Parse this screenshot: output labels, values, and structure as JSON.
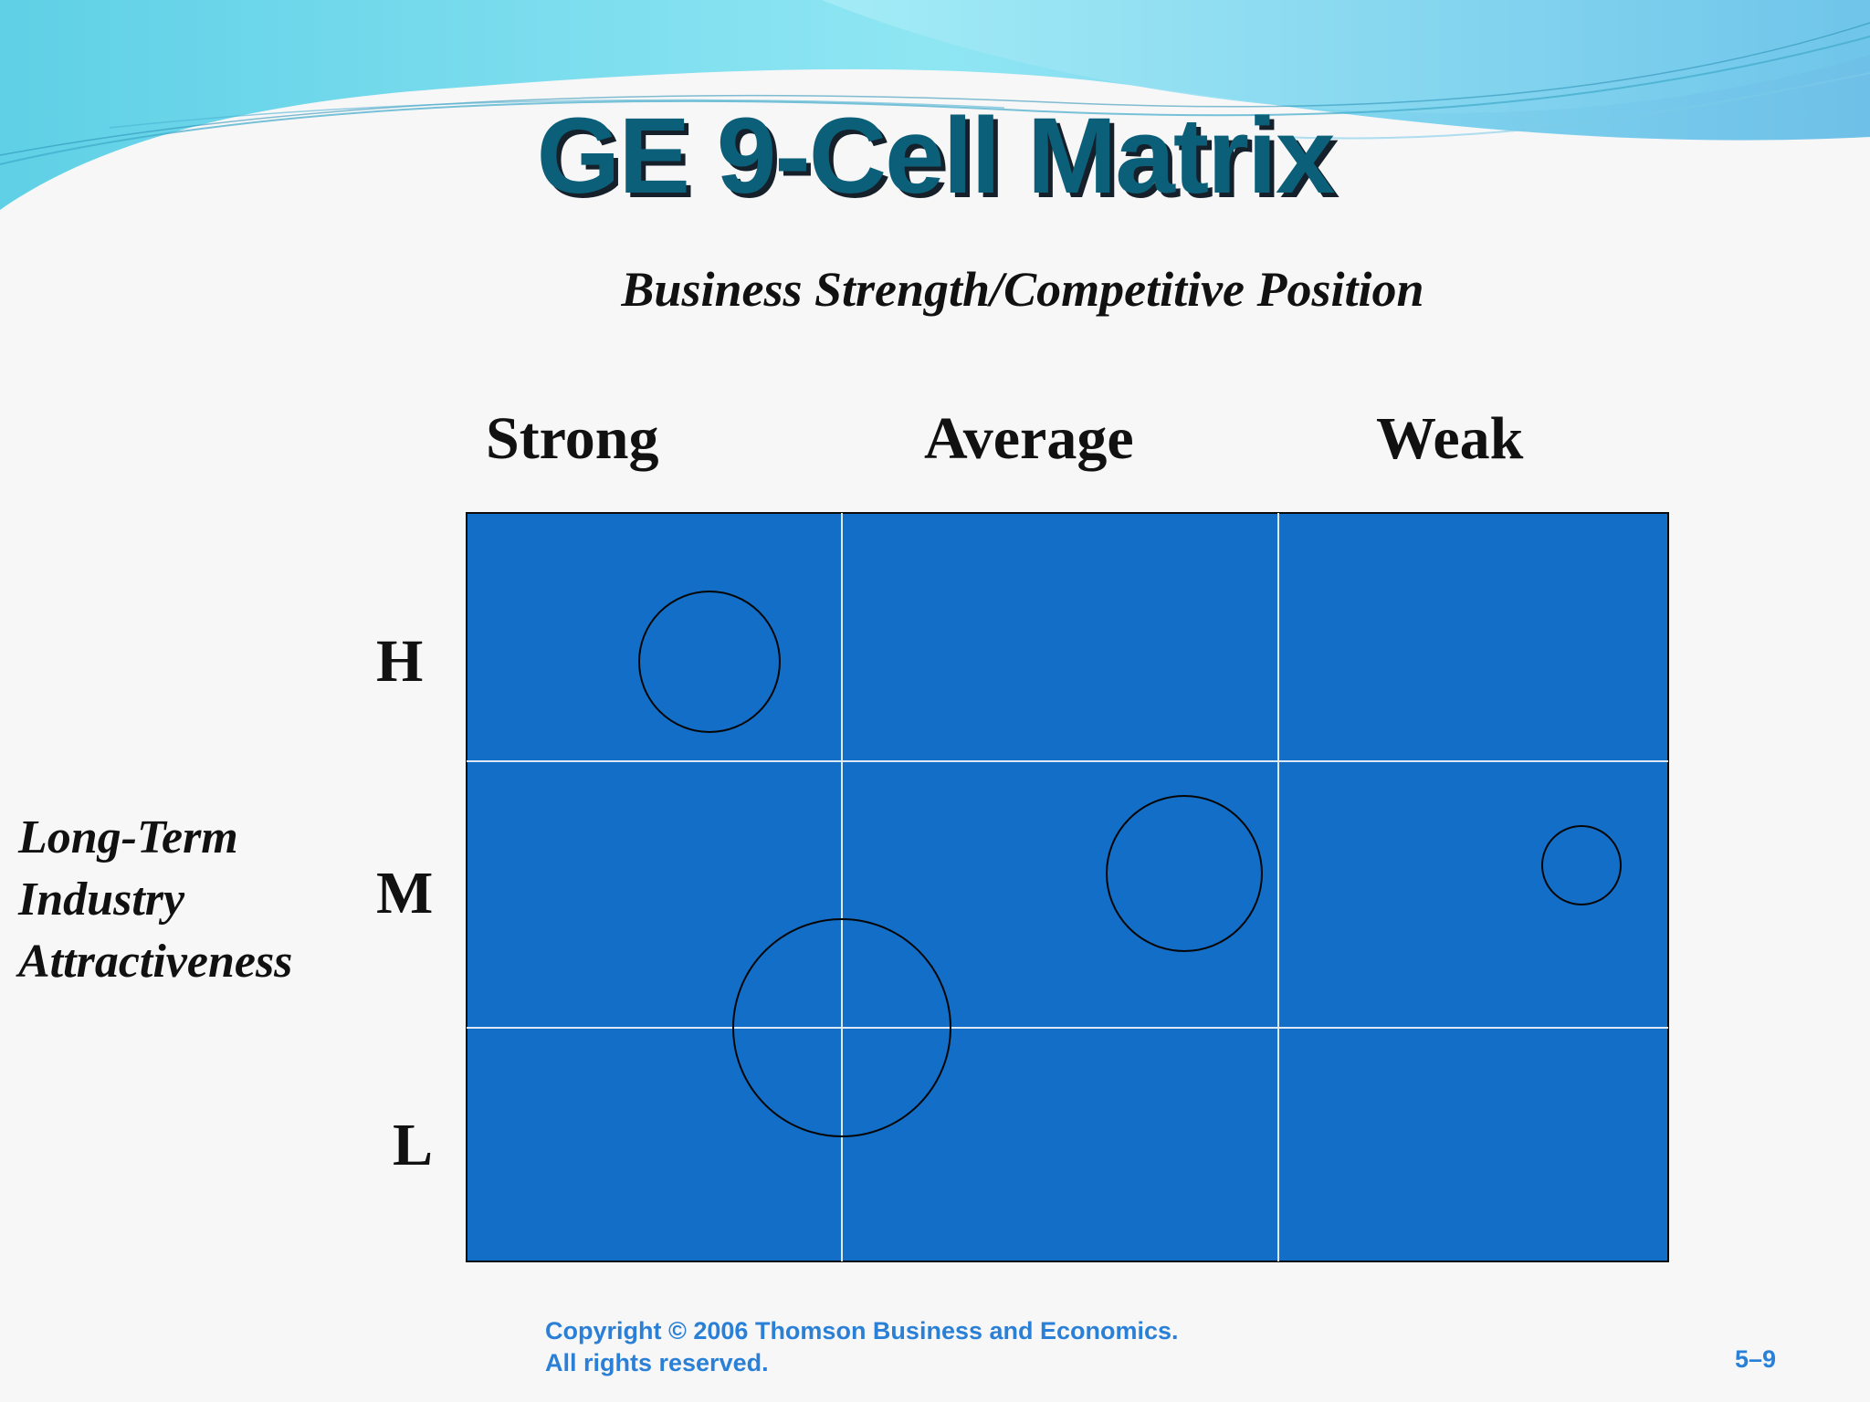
{
  "slide": {
    "title": "GE 9-Cell Matrix",
    "footer_line1": "Copyright © 2006 Thomson Business and Economics.",
    "footer_line2": "All rights reserved.",
    "page_number": "5–9"
  },
  "matrix": {
    "column_axis_title": "Business Strength/Competitive Position",
    "row_axis_title_lines": [
      "Long-Term",
      "Industry",
      "Attractiveness"
    ],
    "columns": [
      "Strong",
      "Average",
      "Weak"
    ],
    "rows": [
      "H",
      "M",
      "L"
    ],
    "cell_color": "#136ec7",
    "grid_line_color": "#dfe9f5",
    "border_color": "#0b0b0b",
    "circle_stroke_color": "#050505"
  }
}
